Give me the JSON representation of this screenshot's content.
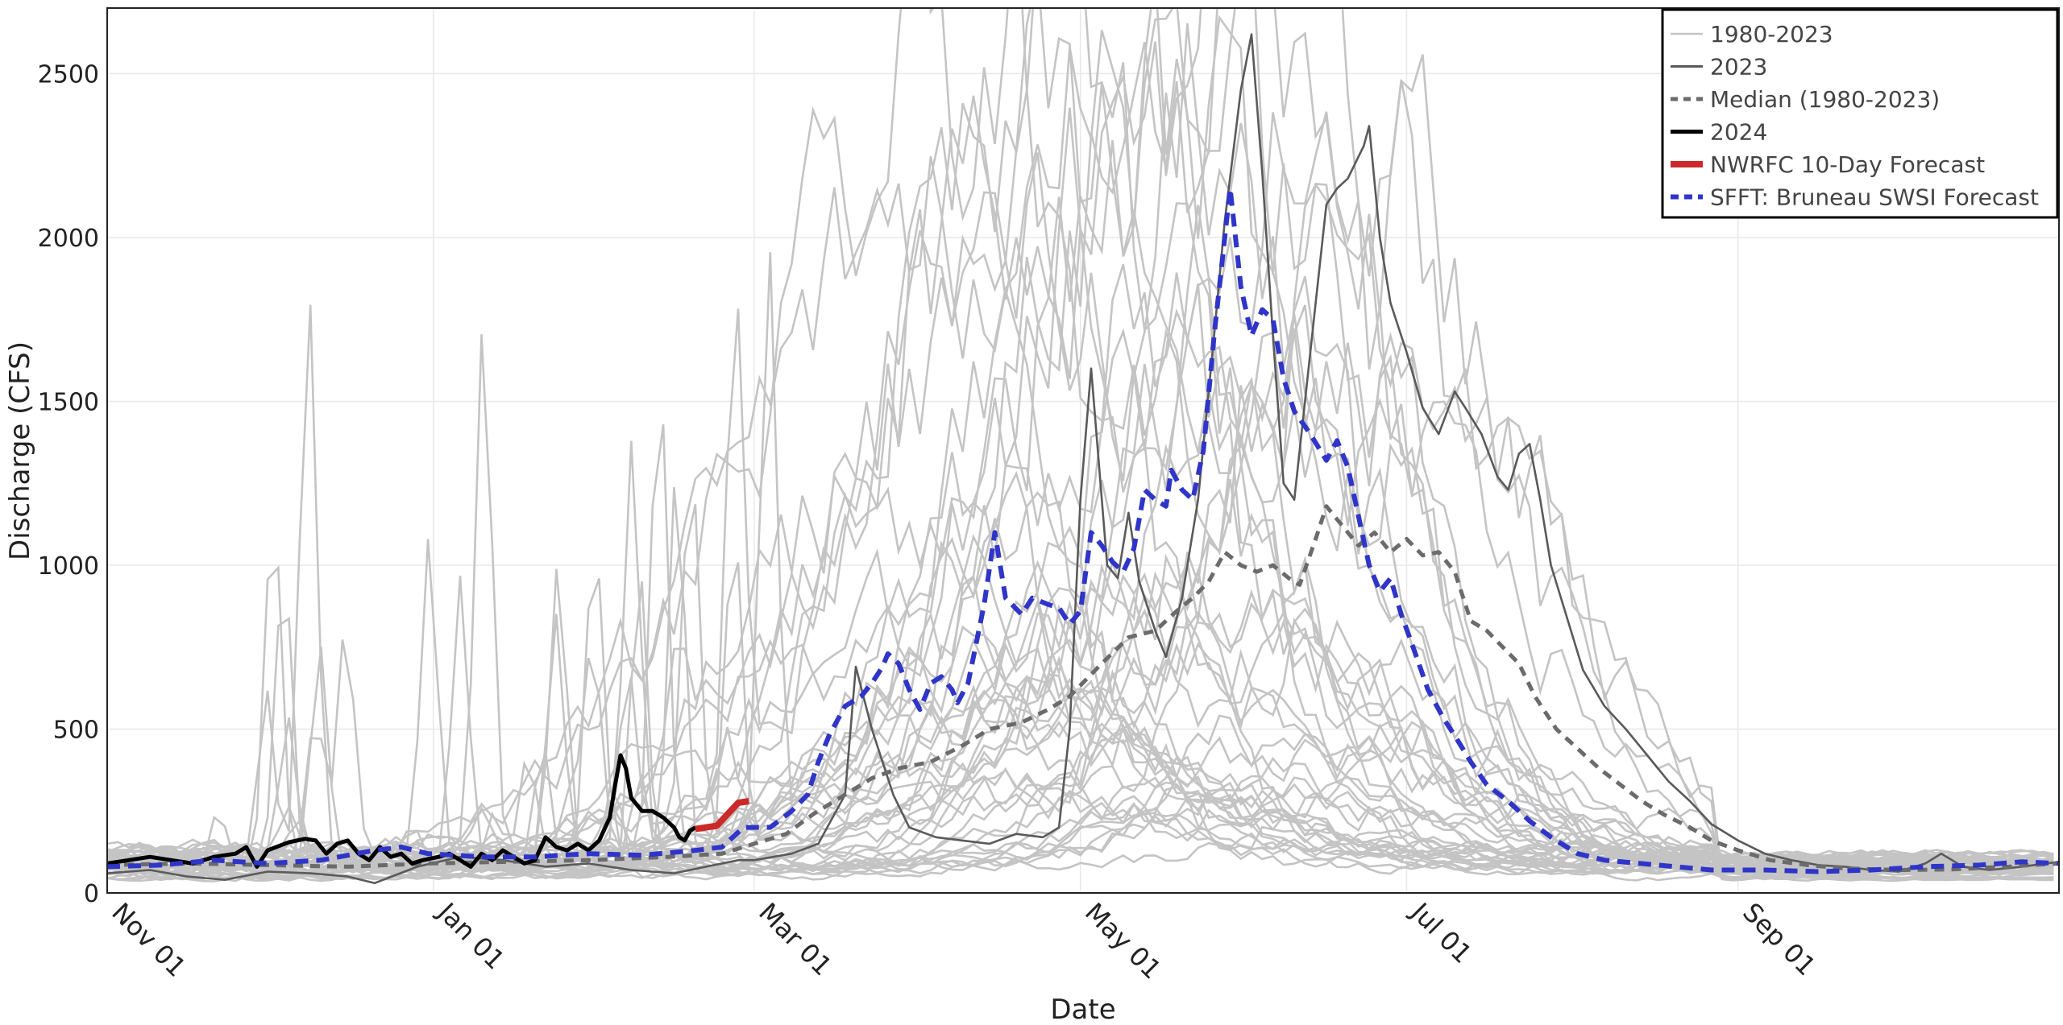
{
  "chart_data": {
    "type": "line",
    "xlabel": "Date",
    "ylabel": "Discharge (CFS)",
    "x_ticks": [
      {
        "day": 0,
        "label": "Nov 01"
      },
      {
        "day": 61,
        "label": "Jan 01"
      },
      {
        "day": 121,
        "label": "Mar 01"
      },
      {
        "day": 182,
        "label": "May 01"
      },
      {
        "day": 243,
        "label": "Jul 01"
      },
      {
        "day": 305,
        "label": "Sep 01"
      }
    ],
    "x_range_days": [
      0,
      365
    ],
    "y_ticks": [
      0,
      500,
      1000,
      1500,
      2000,
      2500
    ],
    "ylim": [
      0,
      2700
    ],
    "grid": true,
    "legend_position": "top-right",
    "legend": [
      {
        "label": "1980-2023",
        "color": "#c4c4c4",
        "style": "solid-thin"
      },
      {
        "label": "2023",
        "color": "#5a5a5a",
        "style": "solid"
      },
      {
        "label": "Median (1980-2023)",
        "color": "#6b6b6b",
        "style": "dashed"
      },
      {
        "label": "2024",
        "color": "#000000",
        "style": "solid-thick"
      },
      {
        "label": "NWRFC 10-Day Forecast",
        "color": "#cc2a2a",
        "style": "solid-thick"
      },
      {
        "label": "SFFT: Bruneau SWSI Forecast",
        "color": "#2f35c8",
        "style": "dashed-thick"
      }
    ],
    "series": [
      {
        "name": "1980-2023",
        "kind": "historical-envelope",
        "color": "#c4c4c4",
        "note": "44 annual traces",
        "peak_day_range": [
          150,
          240
        ],
        "peak_value_range": [
          300,
          3000
        ]
      },
      {
        "name": "2023",
        "color": "#5a5a5a",
        "points": [
          [
            0,
            60
          ],
          [
            8,
            70
          ],
          [
            15,
            50
          ],
          [
            22,
            40
          ],
          [
            30,
            65
          ],
          [
            38,
            60
          ],
          [
            45,
            50
          ],
          [
            50,
            30
          ],
          [
            58,
            80
          ],
          [
            66,
            110
          ],
          [
            74,
            100
          ],
          [
            82,
            80
          ],
          [
            90,
            90
          ],
          [
            98,
            70
          ],
          [
            106,
            60
          ],
          [
            112,
            80
          ],
          [
            118,
            100
          ],
          [
            121,
            100
          ],
          [
            128,
            120
          ],
          [
            133,
            150
          ],
          [
            138,
            300
          ],
          [
            140,
            690
          ],
          [
            143,
            500
          ],
          [
            147,
            300
          ],
          [
            150,
            200
          ],
          [
            155,
            170
          ],
          [
            160,
            160
          ],
          [
            165,
            150
          ],
          [
            170,
            180
          ],
          [
            175,
            170
          ],
          [
            178,
            200
          ],
          [
            180,
            500
          ],
          [
            182,
            1200
          ],
          [
            184,
            1600
          ],
          [
            187,
            1000
          ],
          [
            189,
            960
          ],
          [
            191,
            1160
          ],
          [
            193,
            950
          ],
          [
            196,
            800
          ],
          [
            198,
            720
          ],
          [
            201,
            900
          ],
          [
            204,
            1200
          ],
          [
            207,
            1700
          ],
          [
            209,
            2050
          ],
          [
            212,
            2450
          ],
          [
            214,
            2620
          ],
          [
            216,
            2200
          ],
          [
            218,
            1700
          ],
          [
            220,
            1250
          ],
          [
            222,
            1200
          ],
          [
            224,
            1500
          ],
          [
            226,
            1800
          ],
          [
            228,
            2100
          ],
          [
            230,
            2150
          ],
          [
            232,
            2180
          ],
          [
            235,
            2280
          ],
          [
            236,
            2340
          ],
          [
            238,
            2000
          ],
          [
            240,
            1800
          ],
          [
            243,
            1650
          ],
          [
            246,
            1480
          ],
          [
            249,
            1400
          ],
          [
            252,
            1530
          ],
          [
            254,
            1480
          ],
          [
            257,
            1400
          ],
          [
            260,
            1270
          ],
          [
            262,
            1230
          ],
          [
            264,
            1340
          ],
          [
            266,
            1370
          ],
          [
            268,
            1200
          ],
          [
            270,
            1000
          ],
          [
            273,
            840
          ],
          [
            276,
            680
          ],
          [
            280,
            570
          ],
          [
            284,
            500
          ],
          [
            288,
            420
          ],
          [
            292,
            340
          ],
          [
            296,
            280
          ],
          [
            300,
            210
          ],
          [
            305,
            160
          ],
          [
            310,
            120
          ],
          [
            315,
            100
          ],
          [
            320,
            85
          ],
          [
            325,
            80
          ],
          [
            330,
            70
          ],
          [
            335,
            65
          ],
          [
            340,
            90
          ],
          [
            343,
            120
          ],
          [
            347,
            80
          ],
          [
            352,
            70
          ],
          [
            358,
            80
          ],
          [
            365,
            95
          ]
        ]
      },
      {
        "name": "Median (1980-2023)",
        "color": "#6b6b6b",
        "points": [
          [
            0,
            85
          ],
          [
            15,
            90
          ],
          [
            30,
            85
          ],
          [
            45,
            80
          ],
          [
            60,
            90
          ],
          [
            75,
            95
          ],
          [
            90,
            100
          ],
          [
            105,
            110
          ],
          [
            115,
            120
          ],
          [
            121,
            150
          ],
          [
            127,
            180
          ],
          [
            132,
            240
          ],
          [
            138,
            300
          ],
          [
            143,
            350
          ],
          [
            148,
            380
          ],
          [
            154,
            400
          ],
          [
            160,
            450
          ],
          [
            165,
            500
          ],
          [
            171,
            520
          ],
          [
            176,
            560
          ],
          [
            180,
            600
          ],
          [
            186,
            700
          ],
          [
            191,
            780
          ],
          [
            196,
            800
          ],
          [
            200,
            860
          ],
          [
            203,
            900
          ],
          [
            206,
            950
          ],
          [
            209,
            1040
          ],
          [
            212,
            1000
          ],
          [
            215,
            980
          ],
          [
            218,
            1000
          ],
          [
            221,
            960
          ],
          [
            223,
            940
          ],
          [
            226,
            1080
          ],
          [
            228,
            1180
          ],
          [
            231,
            1120
          ],
          [
            234,
            1060
          ],
          [
            237,
            1100
          ],
          [
            240,
            1040
          ],
          [
            243,
            1080
          ],
          [
            246,
            1030
          ],
          [
            249,
            1040
          ],
          [
            252,
            980
          ],
          [
            255,
            830
          ],
          [
            258,
            800
          ],
          [
            261,
            750
          ],
          [
            264,
            700
          ],
          [
            267,
            600
          ],
          [
            271,
            500
          ],
          [
            275,
            440
          ],
          [
            279,
            380
          ],
          [
            283,
            330
          ],
          [
            287,
            280
          ],
          [
            291,
            240
          ],
          [
            296,
            200
          ],
          [
            300,
            160
          ],
          [
            305,
            130
          ],
          [
            311,
            100
          ],
          [
            318,
            85
          ],
          [
            325,
            75
          ],
          [
            335,
            70
          ],
          [
            345,
            72
          ],
          [
            355,
            80
          ],
          [
            365,
            90
          ]
        ]
      },
      {
        "name": "2024",
        "color": "#000000",
        "points": [
          [
            0,
            90
          ],
          [
            4,
            100
          ],
          [
            8,
            110
          ],
          [
            12,
            100
          ],
          [
            16,
            90
          ],
          [
            20,
            110
          ],
          [
            24,
            120
          ],
          [
            26,
            140
          ],
          [
            28,
            80
          ],
          [
            30,
            130
          ],
          [
            34,
            155
          ],
          [
            37,
            165
          ],
          [
            39,
            160
          ],
          [
            41,
            120
          ],
          [
            43,
            150
          ],
          [
            45,
            160
          ],
          [
            47,
            120
          ],
          [
            49,
            100
          ],
          [
            51,
            140
          ],
          [
            53,
            110
          ],
          [
            55,
            120
          ],
          [
            57,
            90
          ],
          [
            59,
            100
          ],
          [
            62,
            110
          ],
          [
            64,
            120
          ],
          [
            66,
            100
          ],
          [
            68,
            80
          ],
          [
            70,
            120
          ],
          [
            72,
            100
          ],
          [
            74,
            130
          ],
          [
            76,
            110
          ],
          [
            78,
            90
          ],
          [
            80,
            100
          ],
          [
            82,
            170
          ],
          [
            84,
            140
          ],
          [
            86,
            130
          ],
          [
            88,
            150
          ],
          [
            90,
            130
          ],
          [
            92,
            160
          ],
          [
            94,
            230
          ],
          [
            95,
            330
          ],
          [
            96,
            420
          ],
          [
            97,
            380
          ],
          [
            98,
            290
          ],
          [
            100,
            250
          ],
          [
            102,
            250
          ],
          [
            104,
            230
          ],
          [
            106,
            200
          ],
          [
            107,
            170
          ],
          [
            108,
            160
          ],
          [
            109,
            190
          ],
          [
            110,
            200
          ]
        ]
      },
      {
        "name": "NWRFC 10-Day Forecast",
        "color": "#cc2a2a",
        "points": [
          [
            110,
            195
          ],
          [
            112,
            200
          ],
          [
            114,
            205
          ],
          [
            116,
            240
          ],
          [
            118,
            275
          ],
          [
            120,
            280
          ]
        ]
      },
      {
        "name": "SFFT: Bruneau SWSI Forecast",
        "color": "#2f35c8",
        "points": [
          [
            0,
            80
          ],
          [
            10,
            85
          ],
          [
            20,
            100
          ],
          [
            30,
            90
          ],
          [
            40,
            100
          ],
          [
            50,
            130
          ],
          [
            55,
            140
          ],
          [
            60,
            120
          ],
          [
            70,
            110
          ],
          [
            80,
            110
          ],
          [
            90,
            120
          ],
          [
            100,
            115
          ],
          [
            110,
            130
          ],
          [
            115,
            140
          ],
          [
            119,
            200
          ],
          [
            124,
            200
          ],
          [
            128,
            250
          ],
          [
            131,
            300
          ],
          [
            133,
            400
          ],
          [
            135,
            480
          ],
          [
            138,
            570
          ],
          [
            141,
            600
          ],
          [
            143,
            640
          ],
          [
            145,
            690
          ],
          [
            146,
            730
          ],
          [
            148,
            700
          ],
          [
            150,
            620
          ],
          [
            152,
            560
          ],
          [
            154,
            640
          ],
          [
            156,
            660
          ],
          [
            158,
            620
          ],
          [
            159,
            580
          ],
          [
            161,
            640
          ],
          [
            164,
            880
          ],
          [
            166,
            1100
          ],
          [
            168,
            900
          ],
          [
            171,
            850
          ],
          [
            173,
            900
          ],
          [
            176,
            880
          ],
          [
            178,
            870
          ],
          [
            180,
            820
          ],
          [
            182,
            860
          ],
          [
            184,
            1100
          ],
          [
            186,
            1060
          ],
          [
            188,
            1010
          ],
          [
            190,
            980
          ],
          [
            192,
            1050
          ],
          [
            194,
            1230
          ],
          [
            196,
            1200
          ],
          [
            198,
            1180
          ],
          [
            199,
            1290
          ],
          [
            201,
            1230
          ],
          [
            203,
            1200
          ],
          [
            205,
            1350
          ],
          [
            207,
            1700
          ],
          [
            209,
            2000
          ],
          [
            210,
            2150
          ],
          [
            212,
            1850
          ],
          [
            214,
            1700
          ],
          [
            216,
            1780
          ],
          [
            218,
            1750
          ],
          [
            220,
            1570
          ],
          [
            222,
            1470
          ],
          [
            225,
            1400
          ],
          [
            228,
            1320
          ],
          [
            230,
            1380
          ],
          [
            232,
            1300
          ],
          [
            234,
            1150
          ],
          [
            236,
            1000
          ],
          [
            238,
            920
          ],
          [
            240,
            960
          ],
          [
            242,
            850
          ],
          [
            244,
            760
          ],
          [
            247,
            620
          ],
          [
            250,
            530
          ],
          [
            252,
            480
          ],
          [
            255,
            400
          ],
          [
            258,
            330
          ],
          [
            262,
            280
          ],
          [
            266,
            220
          ],
          [
            270,
            170
          ],
          [
            275,
            120
          ],
          [
            280,
            100
          ],
          [
            290,
            85
          ],
          [
            300,
            70
          ],
          [
            310,
            70
          ],
          [
            320,
            65
          ],
          [
            330,
            70
          ],
          [
            340,
            80
          ],
          [
            350,
            85
          ],
          [
            358,
            95
          ],
          [
            365,
            90
          ]
        ]
      }
    ]
  }
}
